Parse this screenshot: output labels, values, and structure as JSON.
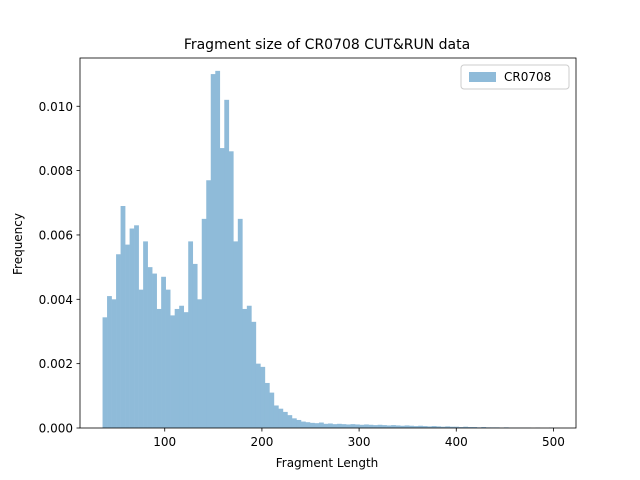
{
  "chart_data": {
    "type": "histogram",
    "title": "Fragment size of CR0708 CUT&RUN data",
    "xlabel": "Fragment Length",
    "ylabel": "Frequency",
    "legend": "upper right",
    "series": [
      {
        "name": "CR0708",
        "color": "#8fbbd9",
        "bins": [
          36,
          40.64,
          45.28,
          49.92,
          54.56,
          59.2,
          63.84,
          68.48,
          73.12,
          77.76,
          82.4,
          87.04,
          91.68,
          96.32,
          100.96,
          105.6,
          110.24,
          114.88,
          119.52,
          124.16,
          128.8,
          133.44,
          138.08,
          142.72,
          147.36,
          152,
          156.64,
          161.28,
          165.92,
          170.56,
          175.2,
          179.84,
          184.48,
          189.12,
          193.76,
          198.4,
          203.04,
          207.68,
          212.32,
          216.96,
          221.6,
          226.24,
          230.88,
          235.52,
          240.16,
          244.8,
          249.44,
          254.08,
          258.72,
          263.36,
          268,
          272.64,
          277.28,
          281.92,
          286.56,
          291.2,
          295.84,
          300.48,
          305.12,
          309.76,
          314.4,
          319.04,
          323.68,
          328.32,
          332.96,
          337.6,
          342.24,
          346.88,
          351.52,
          356.16,
          360.8,
          365.44,
          370.08,
          374.72,
          379.36,
          384,
          388.64,
          393.28,
          397.92,
          402.56,
          407.2,
          411.84,
          416.48,
          421.12,
          425.76,
          430.4,
          435.04,
          439.68,
          444.32,
          448.96,
          453.6,
          458.24,
          462.88,
          467.52,
          472.16,
          476.8,
          481.44,
          486.08,
          490.72,
          495.36,
          500
        ],
        "counts": [
          0.00344,
          0.0041,
          0.004,
          0.0054,
          0.0069,
          0.0057,
          0.0062,
          0.0063,
          0.0043,
          0.0058,
          0.005,
          0.0048,
          0.0037,
          0.0047,
          0.0043,
          0.0035,
          0.0037,
          0.0038,
          0.0036,
          0.0058,
          0.0051,
          0.004,
          0.0065,
          0.0077,
          0.011,
          0.0111,
          0.0087,
          0.0102,
          0.0086,
          0.0058,
          0.0065,
          0.0037,
          0.0038,
          0.0033,
          0.002,
          0.0019,
          0.0014,
          0.0011,
          0.0007,
          0.0006,
          0.0005,
          0.0004,
          0.0003,
          0.00025,
          0.0002,
          0.00018,
          0.00016,
          0.00015,
          0.00017,
          0.00013,
          0.00014,
          0.00012,
          0.00013,
          0.00012,
          0.00011,
          0.00012,
          0.00011,
          0.0001,
          0.00011,
          0.0001,
          9e-05,
          0.0001,
          9e-05,
          8e-05,
          9e-05,
          8e-05,
          7e-05,
          8e-05,
          7e-05,
          6e-05,
          7e-05,
          6e-05,
          5e-05,
          6e-05,
          5e-05,
          4e-05,
          5e-05,
          4e-05,
          4e-05,
          3e-05,
          4e-05,
          3e-05,
          3e-05,
          2e-05,
          3e-05,
          2e-05,
          2e-05,
          2e-05,
          1e-05,
          2e-05,
          1e-05,
          1e-05,
          1e-05,
          1e-05,
          1e-05,
          0,
          1e-05,
          0,
          0,
          1e-05
        ]
      }
    ],
    "xlim": [
      12.8,
      523.2
    ],
    "xticks": [
      100,
      200,
      300,
      400,
      500
    ],
    "ylim": [
      0,
      0.0115
    ],
    "yticks": [
      {
        "value": 0,
        "label": "0.000"
      },
      {
        "value": 0.002,
        "label": "0.002"
      },
      {
        "value": 0.004,
        "label": "0.004"
      },
      {
        "value": 0.006,
        "label": "0.006"
      },
      {
        "value": 0.008,
        "label": "0.008"
      },
      {
        "value": 0.01,
        "label": "0.010"
      }
    ]
  }
}
